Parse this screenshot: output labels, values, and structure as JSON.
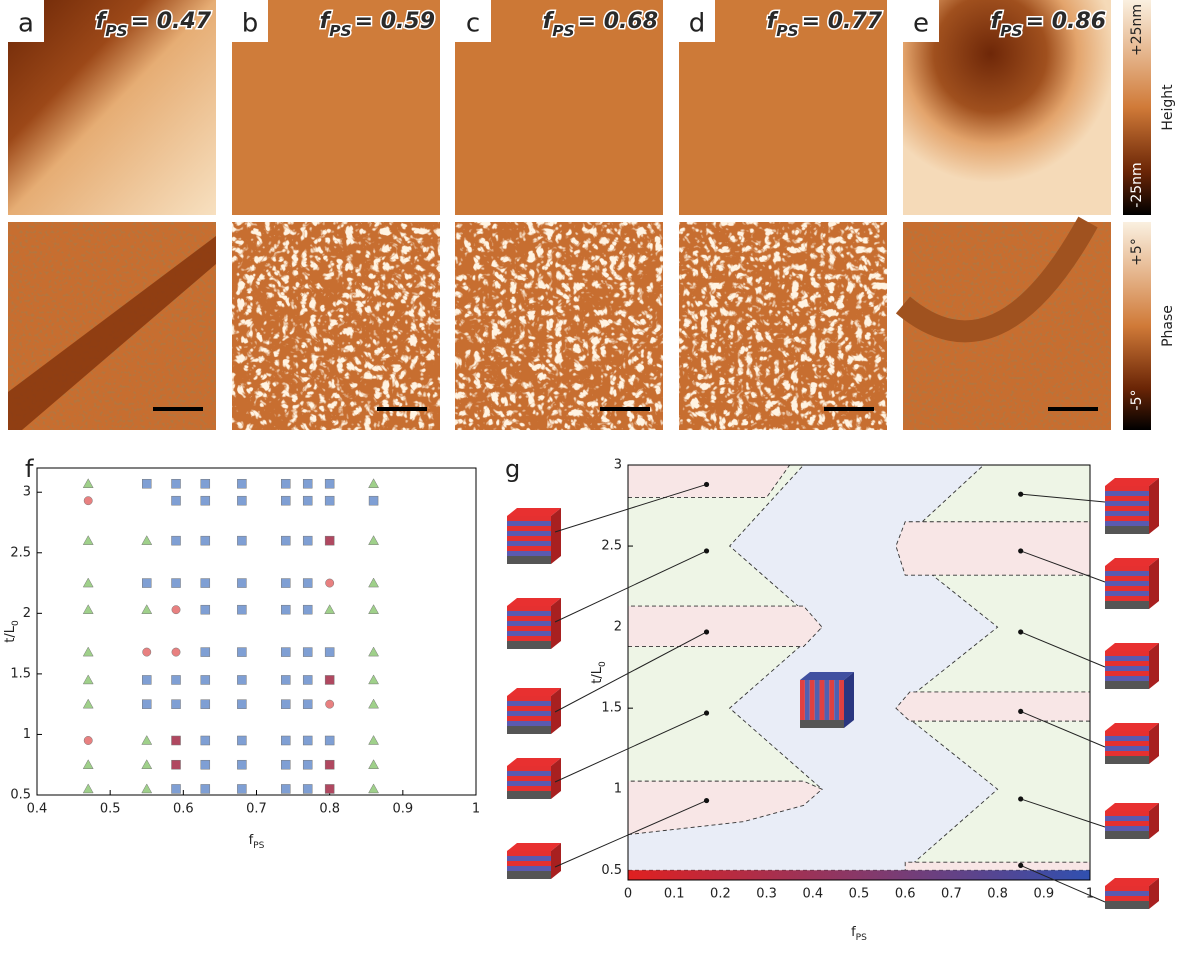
{
  "afm": {
    "panels": [
      {
        "letter": "a",
        "symbol": "f",
        "sub": "PS",
        "value": "= 0.47"
      },
      {
        "letter": "b",
        "symbol": "f",
        "sub": "PS",
        "value": "= 0.59"
      },
      {
        "letter": "c",
        "symbol": "f",
        "sub": "PS",
        "value": "= 0.68"
      },
      {
        "letter": "d",
        "symbol": "f",
        "sub": "PS",
        "value": "= 0.77"
      },
      {
        "letter": "e",
        "symbol": "f",
        "sub": "PS",
        "value": "= 0.86"
      }
    ],
    "height_bar": {
      "top": "+25nm",
      "bottom": "-25nm",
      "label": "Height"
    },
    "phase_bar": {
      "top": "+5°",
      "bottom": "-5°",
      "label": "Phase"
    }
  },
  "chart_data": [
    {
      "type": "scatter",
      "panel": "f",
      "x_label": "f",
      "x_label_sub": "PS",
      "y_label": "t/L",
      "y_label_sub": "0",
      "xlim": [
        0.4,
        1
      ],
      "ylim": [
        0.5,
        3.2
      ],
      "xticks": [
        0.4,
        0.5,
        0.6,
        0.7,
        0.8,
        0.9,
        1
      ],
      "yticks": [
        0.5,
        1,
        1.5,
        2,
        2.5,
        3
      ],
      "series": [
        {
          "marker": "triangle",
          "color": "#9fd08a",
          "x": [
            0.47,
            0.86,
            0.47,
            0.55,
            0.86,
            0.47,
            0.86,
            0.47,
            0.55,
            0.8,
            0.86,
            0.47,
            0.86,
            0.47,
            0.86,
            0.47,
            0.86,
            0.55,
            0.86,
            0.47,
            0.55,
            0.86,
            0.47,
            0.55,
            0.86
          ],
          "y": [
            3.07,
            3.07,
            2.6,
            2.6,
            2.6,
            2.25,
            2.25,
            2.03,
            2.03,
            2.03,
            2.03,
            1.68,
            1.68,
            1.45,
            1.45,
            1.25,
            1.25,
            0.95,
            0.95,
            0.75,
            0.75,
            0.75,
            0.55,
            0.55,
            0.55
          ]
        },
        {
          "marker": "square",
          "color": "#7f9fd4",
          "x": [
            0.55,
            0.59,
            0.63,
            0.68,
            0.74,
            0.77,
            0.8,
            0.59,
            0.63,
            0.68,
            0.74,
            0.77,
            0.8,
            0.86,
            0.59,
            0.63,
            0.68,
            0.74,
            0.77,
            0.55,
            0.59,
            0.63,
            0.68,
            0.74,
            0.77,
            0.63,
            0.68,
            0.74,
            0.77,
            0.63,
            0.68,
            0.74,
            0.77,
            0.8,
            0.55,
            0.59,
            0.63,
            0.68,
            0.74,
            0.77,
            0.55,
            0.59,
            0.63,
            0.68,
            0.74,
            0.77,
            0.63,
            0.68,
            0.74,
            0.77,
            0.8,
            0.63,
            0.68,
            0.74,
            0.77,
            0.59,
            0.63,
            0.68,
            0.74,
            0.77
          ],
          "y": [
            3.07,
            3.07,
            3.07,
            3.07,
            3.07,
            3.07,
            3.07,
            2.93,
            2.93,
            2.93,
            2.93,
            2.93,
            2.93,
            2.93,
            2.6,
            2.6,
            2.6,
            2.6,
            2.6,
            2.25,
            2.25,
            2.25,
            2.25,
            2.25,
            2.25,
            2.03,
            2.03,
            2.03,
            2.03,
            1.68,
            1.68,
            1.68,
            1.68,
            1.68,
            1.45,
            1.45,
            1.45,
            1.45,
            1.45,
            1.45,
            1.25,
            1.25,
            1.25,
            1.25,
            1.25,
            1.25,
            0.95,
            0.95,
            0.95,
            0.95,
            0.95,
            0.75,
            0.75,
            0.75,
            0.75,
            0.55,
            0.55,
            0.55,
            0.55,
            0.55
          ]
        },
        {
          "marker": "circle",
          "color": "#e88080",
          "x": [
            0.47,
            0.8,
            0.59,
            0.55,
            0.59,
            0.8,
            0.47
          ],
          "y": [
            2.93,
            2.25,
            2.03,
            1.68,
            1.68,
            1.25,
            0.95
          ]
        },
        {
          "marker": "square",
          "color": "#b04860",
          "x": [
            0.8,
            0.8,
            0.59,
            0.59,
            0.8,
            0.8
          ],
          "y": [
            2.6,
            1.45,
            0.95,
            0.75,
            0.75,
            0.55
          ]
        }
      ]
    },
    {
      "type": "region",
      "panel": "g",
      "x_label": "f",
      "x_label_sub": "PS",
      "y_label": "t/L",
      "y_label_sub": "0",
      "xlim": [
        0,
        1
      ],
      "ylim": [
        0.44,
        3
      ],
      "xticks": [
        0,
        0.1,
        0.2,
        0.3,
        0.4,
        0.5,
        0.6,
        0.7,
        0.8,
        0.9,
        1
      ],
      "yticks": [
        0.5,
        1,
        1.5,
        2,
        2.5,
        3
      ],
      "background": "#eef5e6",
      "regions": [
        {
          "color": "#e9edf7",
          "x": [
            0,
            0.6,
            0.8,
            0.58,
            0.8,
            0.58,
            0.77,
            0.38,
            0.22,
            0.42,
            0.22,
            0.42,
            0
          ],
          "y": [
            0.5,
            0.5,
            1.0,
            1.5,
            2.0,
            2.5,
            3.0,
            3.0,
            2.5,
            2.0,
            1.5,
            1.0,
            0.72
          ]
        },
        {
          "color": "#f8e6e6",
          "x": [
            0,
            0.25,
            0.38,
            0.42,
            0.38,
            0
          ],
          "y": [
            0.72,
            0.8,
            0.9,
            1.0,
            1.05,
            1.05
          ]
        },
        {
          "color": "#f8e6e6",
          "x": [
            0,
            0.38,
            0.42,
            0.38,
            0
          ],
          "y": [
            1.88,
            1.88,
            2.0,
            2.13,
            2.13
          ]
        },
        {
          "color": "#f8e6e6",
          "x": [
            0,
            0.3,
            0.35,
            0
          ],
          "y": [
            2.8,
            2.8,
            3.0,
            3.0
          ]
        },
        {
          "color": "#f8e6e6",
          "x": [
            1,
            0.6,
            0.58,
            0.6,
            1
          ],
          "y": [
            2.32,
            2.32,
            2.5,
            2.65,
            2.65
          ]
        },
        {
          "color": "#f8e6e6",
          "x": [
            1,
            0.61,
            0.58,
            0.61,
            1
          ],
          "y": [
            1.42,
            1.42,
            1.5,
            1.6,
            1.6
          ]
        },
        {
          "color": "#f8e6e6",
          "x": [
            1,
            0.6,
            0.6,
            1
          ],
          "y": [
            0.5,
            0.5,
            0.55,
            0.55
          ]
        }
      ],
      "points": {
        "color": "#111",
        "x": [
          0.17,
          0.17,
          0.17,
          0.17,
          0.17,
          0.85,
          0.85,
          0.85,
          0.85,
          0.85,
          0.85
        ],
        "y": [
          2.88,
          2.47,
          1.97,
          1.47,
          0.93,
          2.82,
          2.47,
          1.97,
          1.48,
          0.94,
          0.53
        ]
      }
    }
  ]
}
